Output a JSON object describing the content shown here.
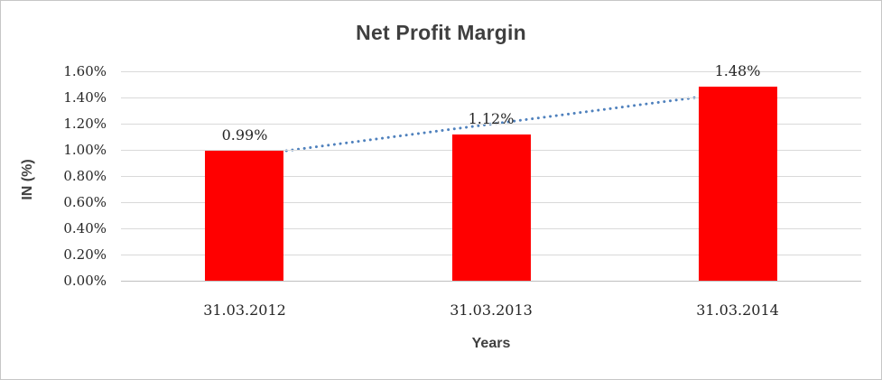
{
  "chart_data": {
    "type": "bar",
    "title": "Net Profit Margin",
    "categories": [
      "31.03.2012",
      "31.03.2013",
      "31.03.2014"
    ],
    "values": [
      0.99,
      1.12,
      1.48
    ],
    "data_labels": [
      "0.99%",
      "1.12%",
      "1.48%"
    ],
    "xlabel": "Years",
    "ylabel": "IN (%)",
    "ylim": [
      0,
      1.6
    ],
    "y_tick_step": 0.2,
    "y_tick_labels": [
      "0.00%",
      "0.20%",
      "0.40%",
      "0.60%",
      "0.80%",
      "1.00%",
      "1.20%",
      "1.40%",
      "1.60%"
    ],
    "grid": true,
    "legend": "none",
    "trendline": {
      "type": "linear",
      "style": "dotted",
      "fitted_endpoint_values": [
        0.95,
        1.44
      ]
    },
    "colors": {
      "bar": "#ff0000",
      "trendline": "#4f81bd",
      "gridline": "#d9d9d9",
      "axis_line": "#bfbfbf",
      "title_text": "#3f3f3f",
      "tick_text": "#262626",
      "chart_border": "#c6c6c6",
      "background": "#ffffff"
    }
  }
}
